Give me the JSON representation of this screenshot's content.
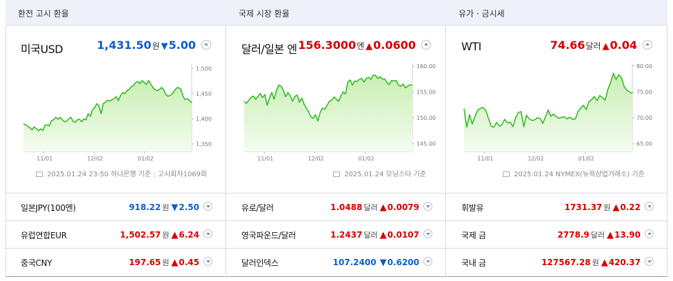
{
  "colors": {
    "up": "#d60000",
    "down": "#0b5fc9",
    "line": "#33bb22",
    "fill_top": "#c9efb4",
    "fill_bottom": "#f4fcef"
  },
  "panels": [
    {
      "header": "환전 고시 환율",
      "title": "미국USD",
      "value": "1,431.50",
      "unit": "원",
      "direction": "down",
      "change": "5.00",
      "footnote_date": "2025.01.24 23:50",
      "footnote_src": "하나은행 기준",
      "footnote_extra": "고시회차1069회",
      "chart_data": {
        "type": "area",
        "x_ticks": [
          "11/01",
          "12/02",
          "01/02"
        ],
        "y_ticks": [
          "1,500",
          "1,450",
          "1,400",
          "1,350"
        ],
        "ylim": [
          1335,
          1510
        ],
        "values": [
          1390,
          1388,
          1385,
          1382,
          1378,
          1384,
          1380,
          1376,
          1380,
          1377,
          1387,
          1388,
          1386,
          1396,
          1398,
          1403,
          1399,
          1403,
          1398,
          1394,
          1395,
          1400,
          1403,
          1395,
          1393,
          1398,
          1399,
          1394,
          1400,
          1398,
          1410,
          1405,
          1418,
          1422,
          1430,
          1425,
          1410,
          1430,
          1433,
          1437,
          1435,
          1438,
          1440,
          1444,
          1436,
          1446,
          1452,
          1450,
          1456,
          1458,
          1464,
          1466,
          1472,
          1474,
          1470,
          1476,
          1472,
          1468,
          1476,
          1469,
          1462,
          1458,
          1456,
          1458,
          1462,
          1458,
          1448,
          1445,
          1446,
          1450,
          1456,
          1461,
          1462,
          1458,
          1444,
          1438,
          1440,
          1436,
          1432
        ]
      }
    },
    {
      "header": "국제 시장 환율",
      "title": "달러/일본 엔",
      "value": "156.3000",
      "unit": "엔",
      "direction": "up",
      "change": "0.0600",
      "footnote_date": "2025.01.24",
      "footnote_src": "모닝스타 기준",
      "chart_data": {
        "type": "area",
        "x_ticks": [
          "11/01",
          "12/02",
          "01/02"
        ],
        "y_ticks": [
          "160.00",
          "155.00",
          "150.00",
          "145.00"
        ],
        "ylim": [
          143.5,
          160.5
        ],
        "values": [
          153.2,
          152.8,
          153.4,
          153.9,
          154.2,
          153.6,
          154.1,
          154.7,
          153.9,
          154.5,
          152.4,
          153.8,
          154.9,
          153.6,
          155.2,
          156.3,
          156.1,
          155.4,
          154.1,
          154.9,
          154.3,
          153.2,
          154.1,
          154.4,
          153.0,
          153.8,
          152.7,
          151.8,
          151.2,
          150.2,
          149.9,
          150.6,
          149.4,
          151.0,
          151.9,
          151.6,
          152.4,
          153.2,
          153.4,
          154.0,
          153.6,
          153.2,
          154.2,
          155.0,
          154.6,
          156.9,
          157.3,
          156.3,
          157.1,
          157.0,
          157.4,
          157.6,
          156.9,
          157.6,
          157.8,
          157.4,
          158.2,
          158.2,
          157.6,
          157.9,
          157.5,
          157.5,
          156.8,
          156.4,
          157.2,
          157.1,
          157.2,
          156.3,
          156.1,
          156.5,
          155.8,
          156.1,
          156.4,
          156.3
        ]
      }
    },
    {
      "header": "유가 · 금시세",
      "title": "WTI",
      "value": "74.66",
      "unit": "달러",
      "direction": "up",
      "change": "0.04",
      "footnote_date": "2025.01.24",
      "footnote_src": "NYMEX(뉴욕상업거래소) 기준",
      "chart_data": {
        "type": "area",
        "x_ticks": [
          "11/01",
          "12/02",
          "01/02"
        ],
        "y_ticks": [
          "80.00",
          "75.00",
          "70.00",
          "65.00"
        ],
        "ylim": [
          63.5,
          80.5
        ],
        "values": [
          71.8,
          68.2,
          70.6,
          68.8,
          70.2,
          71.5,
          71.8,
          72.0,
          71.4,
          69.9,
          68.4,
          68.2,
          69.1,
          68.4,
          68.7,
          69.7,
          69.0,
          69.2,
          68.3,
          70.0,
          71.0,
          71.2,
          68.3,
          70.5,
          69.8,
          69.5,
          69.6,
          70.0,
          69.9,
          68.9,
          70.2,
          71.5,
          70.3,
          70.7,
          70.2,
          69.9,
          70.1,
          70.2,
          69.8,
          70.1,
          69.7,
          69.8,
          71.2,
          71.9,
          72.4,
          71.6,
          73.1,
          73.5,
          74.1,
          73.3,
          74.3,
          73.9,
          73.4,
          75.5,
          76.8,
          78.6,
          77.4,
          78.3,
          77.7,
          76.0,
          75.3,
          75.0,
          74.7
        ]
      }
    }
  ],
  "rows": [
    [
      {
        "name": "일본JPY(100엔)",
        "value": "918.22",
        "unit": "원",
        "direction": "down",
        "change": "2.50"
      },
      {
        "name": "유럽연합EUR",
        "value": "1,502.57",
        "unit": "원",
        "direction": "up",
        "change": "6.24"
      },
      {
        "name": "중국CNY",
        "value": "197.65",
        "unit": "원",
        "direction": "up",
        "change": "0.45"
      }
    ],
    [
      {
        "name": "유로/달러",
        "value": "1.0488",
        "unit": "달러",
        "direction": "up",
        "change": "0.0079"
      },
      {
        "name": "영국파운드/달러",
        "value": "1.2437",
        "unit": "달러",
        "direction": "up",
        "change": "0.0107"
      },
      {
        "name": "달러인덱스",
        "value": "107.2400",
        "unit": "",
        "direction": "down",
        "change": "0.6200"
      }
    ],
    [
      {
        "name": "휘발유",
        "value": "1731.37",
        "unit": "원",
        "direction": "up",
        "change": "0.22"
      },
      {
        "name": "국제 금",
        "value": "2778.9",
        "unit": "달러",
        "direction": "up",
        "change": "13.90"
      },
      {
        "name": "국내 금",
        "value": "127567.28",
        "unit": "원",
        "direction": "up",
        "change": "420.37"
      }
    ]
  ]
}
